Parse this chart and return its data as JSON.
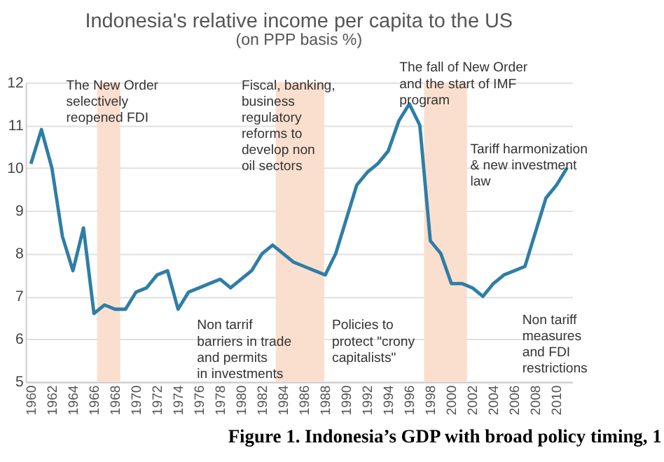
{
  "chart_data": {
    "type": "line",
    "title": "Indonesia's relative income per capita to the US",
    "subtitle": "(on PPP basis %)",
    "x": [
      1960,
      1961,
      1962,
      1963,
      1964,
      1965,
      1966,
      1967,
      1968,
      1969,
      1970,
      1971,
      1972,
      1973,
      1974,
      1975,
      1976,
      1977,
      1978,
      1979,
      1980,
      1981,
      1982,
      1983,
      1984,
      1985,
      1986,
      1987,
      1988,
      1989,
      1990,
      1991,
      1992,
      1993,
      1994,
      1995,
      1996,
      1997,
      1998,
      1999,
      2000,
      2001,
      2002,
      2003,
      2004,
      2005,
      2006,
      2007,
      2008,
      2009,
      2010,
      2011
    ],
    "series": [
      {
        "color": "#2e7ea6",
        "values": [
          10.1,
          10.9,
          10.0,
          8.4,
          7.6,
          8.6,
          6.6,
          6.8,
          6.7,
          6.7,
          7.1,
          7.2,
          7.5,
          7.6,
          6.7,
          7.1,
          7.2,
          7.3,
          7.4,
          7.2,
          7.4,
          7.6,
          8.0,
          8.2,
          8.0,
          7.8,
          7.7,
          7.6,
          7.5,
          8.0,
          8.8,
          9.6,
          9.9,
          10.1,
          10.4,
          11.1,
          11.5,
          11.0,
          8.3,
          8.0,
          7.3,
          7.3,
          7.2,
          7.0,
          7.3,
          7.5,
          7.6,
          7.7,
          8.5,
          9.3,
          9.6,
          10.0
        ]
      }
    ],
    "xlim": [
      1959.5,
      2011.5
    ],
    "ylim": [
      5,
      12
    ],
    "xticks": [
      1960,
      1962,
      1964,
      1966,
      1968,
      1970,
      1972,
      1974,
      1976,
      1978,
      1980,
      1982,
      1984,
      1986,
      1988,
      1990,
      1992,
      1994,
      1996,
      1998,
      2000,
      2002,
      2004,
      2006,
      2008,
      2010
    ],
    "yticks": [
      5,
      6,
      7,
      8,
      9,
      10,
      11,
      12
    ],
    "grid": "y",
    "marker": "none",
    "line_style": "solid",
    "bands": [
      {
        "axis": "x",
        "from": 1966.3,
        "to": 1968.5,
        "color": "#fbdfce"
      },
      {
        "axis": "x",
        "from": 1983.3,
        "to": 1987.9,
        "color": "#fbdfce"
      },
      {
        "axis": "x",
        "from": 1997.4,
        "to": 2001.5,
        "color": "#fbdfce"
      }
    ],
    "annotations": [
      "The New Order\nselectively\nreopened FDI",
      "Fiscal, banking,\nbusiness\nregulatory\nreforms to\ndevelop non\noil sectors",
      "The fall of New Order\nand the start of IMF\nprogram",
      {
        "text": "Tariff harmonization\n& new investment\nlaw",
        "x": 2001.8,
        "y": 10.6
      },
      "Non tarrif\nbarriers in trade\nand permits\nin investments",
      "Policies to\nprotect \"crony\ncapitalists\"",
      "Non tariff\nmeasures\nand FDI\nrestrictions",
      "Figure 1. Indonesia’s GDP with broad policy timing, 1"
    ]
  }
}
